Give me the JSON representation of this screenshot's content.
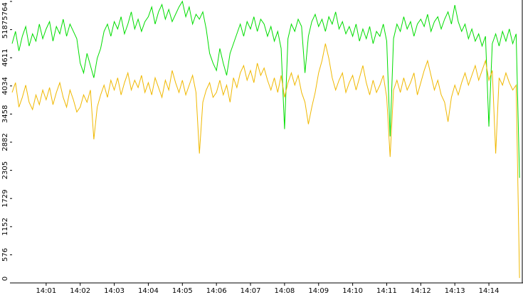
{
  "chart_data": {
    "type": "line",
    "x": [
      0,
      0.1,
      0.2,
      0.3,
      0.4,
      0.5,
      0.6,
      0.7,
      0.8,
      0.9,
      1,
      1.1,
      1.2,
      1.3,
      1.4,
      1.5,
      1.6,
      1.7,
      1.8,
      1.9,
      2,
      2.1,
      2.2,
      2.3,
      2.4,
      2.5,
      2.6,
      2.7,
      2.8,
      2.9,
      3,
      3.1,
      3.2,
      3.3,
      3.4,
      3.5,
      3.6,
      3.7,
      3.8,
      3.9,
      4,
      4.1,
      4.2,
      4.3,
      4.4,
      4.5,
      4.6,
      4.7,
      4.8,
      4.9,
      5,
      5.1,
      5.2,
      5.3,
      5.4,
      5.5,
      5.6,
      5.7,
      5.8,
      5.9,
      6,
      6.1,
      6.2,
      6.3,
      6.4,
      6.5,
      6.6,
      6.7,
      6.8,
      6.9,
      7,
      7.1,
      7.2,
      7.3,
      7.4,
      7.5,
      7.6,
      7.7,
      7.8,
      7.9,
      8,
      8.1,
      8.2,
      8.3,
      8.4,
      8.5,
      8.6,
      8.7,
      8.8,
      8.9,
      9,
      9.1,
      9.2,
      9.3,
      9.4,
      9.5,
      9.6,
      9.7,
      9.8,
      9.9,
      10,
      10.1,
      10.2,
      10.3,
      10.4,
      10.5,
      10.6,
      10.7,
      10.8,
      10.9,
      11,
      11.1,
      11.2,
      11.3,
      11.4,
      11.5,
      11.6,
      11.7,
      11.8,
      11.9,
      12,
      12.1,
      12.2,
      12.3,
      12.4,
      12.5,
      12.6,
      12.7,
      12.8,
      12.9,
      13,
      13.1,
      13.2,
      13.3,
      13.4,
      13.5,
      13.6,
      13.7,
      13.8,
      13.9,
      14,
      14.1,
      14.2,
      14.3,
      14.4,
      14.5,
      14.6,
      14.7,
      14.8,
      14.9
    ],
    "series": [
      {
        "color": "#00dd00",
        "values": [
          4900,
          5150,
          4750,
          5050,
          5250,
          4850,
          5100,
          4950,
          5300,
          5000,
          5200,
          5350,
          4950,
          5250,
          5100,
          5400,
          5050,
          5300,
          5150,
          5000,
          4500,
          4300,
          4700,
          4450,
          4200,
          4600,
          4800,
          5150,
          5300,
          5050,
          5350,
          5200,
          5450,
          5100,
          5300,
          5550,
          5200,
          5400,
          5150,
          5350,
          5450,
          5650,
          5300,
          5550,
          5700,
          5400,
          5600,
          5350,
          5500,
          5650,
          5764,
          5450,
          5650,
          5300,
          5500,
          5400,
          5550,
          5200,
          4700,
          4500,
          4350,
          4800,
          4500,
          4250,
          4700,
          4900,
          5100,
          5300,
          5050,
          5350,
          5200,
          5450,
          5150,
          5400,
          5300,
          5050,
          5250,
          4950,
          5150,
          4800,
          3150,
          5000,
          5300,
          5150,
          5400,
          5250,
          4300,
          5050,
          5350,
          5500,
          5250,
          5400,
          5150,
          5450,
          5300,
          5550,
          5200,
          5350,
          5100,
          5250,
          5050,
          5300,
          4950,
          5200,
          5000,
          5250,
          4900,
          5150,
          5050,
          5300,
          4950,
          3000,
          5000,
          5300,
          5150,
          5450,
          5200,
          5350,
          5050,
          5300,
          5400,
          5250,
          5500,
          5150,
          5350,
          5450,
          5200,
          5400,
          5550,
          5300,
          5690,
          5350,
          5150,
          5300,
          5000,
          5200,
          4950,
          5100,
          4850,
          5050,
          3200,
          4900,
          5100,
          4850,
          5150,
          4950,
          5200,
          4900,
          5100,
          2150
        ]
      },
      {
        "color": "#f0b800",
        "values": [
          3900,
          4100,
          3600,
          3800,
          4050,
          3700,
          3550,
          3850,
          3650,
          3950,
          3750,
          4000,
          3650,
          3900,
          4100,
          3800,
          3600,
          3950,
          3750,
          3500,
          3600,
          3850,
          3700,
          3950,
          2940,
          3600,
          3850,
          4050,
          3800,
          4150,
          3950,
          4200,
          3850,
          4100,
          4300,
          3950,
          4150,
          4000,
          4250,
          3900,
          4100,
          3850,
          4200,
          4000,
          3800,
          4150,
          3950,
          4350,
          4100,
          3900,
          4150,
          3850,
          4050,
          4250,
          3900,
          2650,
          3700,
          3950,
          4100,
          3800,
          3900,
          4150,
          3850,
          4050,
          3700,
          4200,
          4000,
          4300,
          4450,
          4150,
          4350,
          4100,
          4500,
          4250,
          4400,
          4150,
          3950,
          4200,
          3900,
          4250,
          3800,
          4100,
          4300,
          4050,
          4250,
          3900,
          3700,
          3250,
          3600,
          3900,
          4300,
          4550,
          4900,
          4600,
          4200,
          3950,
          4150,
          4300,
          3900,
          4100,
          4250,
          3950,
          4200,
          4450,
          4100,
          3850,
          4150,
          3900,
          4050,
          4250,
          3800,
          2580,
          3950,
          4150,
          3900,
          4200,
          3950,
          4100,
          4300,
          3850,
          4100,
          4350,
          4550,
          4250,
          3950,
          4150,
          3850,
          3700,
          3300,
          3800,
          4050,
          3850,
          4100,
          4300,
          4050,
          4250,
          4450,
          4150,
          4350,
          4550,
          4150,
          4350,
          2650,
          4200,
          4050,
          4300,
          4100,
          3950,
          4050,
          100
        ]
      }
    ],
    "xlim": [
      0,
      14.96
    ],
    "xticks": [
      {
        "value": 1,
        "label": "14:01"
      },
      {
        "value": 2,
        "label": "14:02"
      },
      {
        "value": 3,
        "label": "14:03"
      },
      {
        "value": 4,
        "label": "14:04"
      },
      {
        "value": 5,
        "label": "14:05"
      },
      {
        "value": 6,
        "label": "14:06"
      },
      {
        "value": 7,
        "label": "14:07"
      },
      {
        "value": 8,
        "label": "14:08"
      },
      {
        "value": 9,
        "label": "14:09"
      },
      {
        "value": 10,
        "label": "14:10"
      },
      {
        "value": 11,
        "label": "14:11"
      },
      {
        "value": 12,
        "label": "14:12"
      },
      {
        "value": 13,
        "label": "14:13"
      },
      {
        "value": 14,
        "label": "14:14"
      }
    ],
    "ylim": [
      0,
      5764
    ],
    "yticks": [
      0,
      576,
      1152,
      1729,
      2305,
      2882,
      3458,
      4034,
      4611,
      5187,
      5764
    ]
  }
}
